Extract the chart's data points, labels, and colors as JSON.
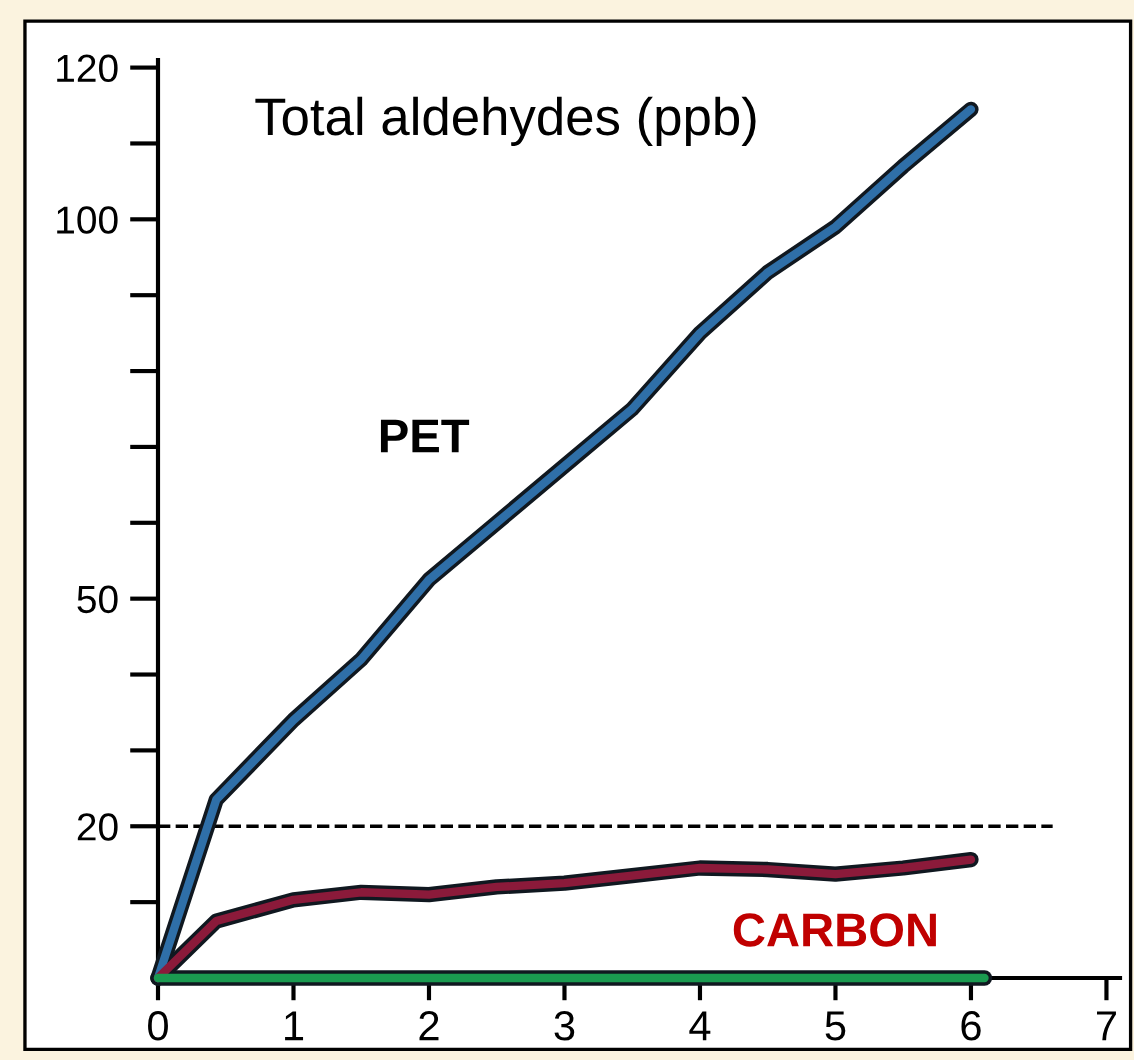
{
  "chart_data": {
    "type": "line",
    "title": "Total aldehydes (ppb)",
    "x": [
      0,
      0.43,
      1,
      1.5,
      2,
      2.5,
      3,
      3.5,
      4,
      4.5,
      5,
      5.5,
      6
    ],
    "series": [
      {
        "name": "PET",
        "color": "#2f6fa8",
        "values": [
          0,
          23.5,
          34,
          42,
          52.5,
          60,
          67.5,
          75,
          85,
          93,
          99,
          107,
          114.5
        ]
      },
      {
        "name": "CARBON",
        "color": "#8b1a3a",
        "values": [
          0,
          7.5,
          10.3,
          11.3,
          11,
          12,
          12.5,
          13.5,
          14.5,
          14.3,
          13.7,
          14.5,
          15.6
        ]
      },
      {
        "color": "#1a9a50",
        "x": [
          0,
          6.1
        ],
        "values": [
          0,
          0
        ]
      }
    ],
    "xlim": [
      0,
      7.1
    ],
    "ylim": [
      0,
      121
    ],
    "xticks": [
      0,
      1,
      2,
      3,
      4,
      5,
      6,
      7
    ],
    "yticks": [
      {
        "value": 10,
        "label": null
      },
      20,
      {
        "value": 30,
        "label": null
      },
      {
        "value": 40,
        "label": null
      },
      50,
      {
        "value": 60,
        "label": null
      },
      {
        "value": 70,
        "label": null
      },
      {
        "value": 80,
        "label": null
      },
      {
        "value": 90,
        "label": null
      },
      100,
      {
        "value": 110,
        "label": null
      },
      120
    ],
    "ref_lines": [
      {
        "axis": "y",
        "value": 20,
        "color": "#000000",
        "line_style": "dashed"
      }
    ],
    "grid": false,
    "legend": false,
    "marker": "none",
    "line_style": "solid"
  }
}
